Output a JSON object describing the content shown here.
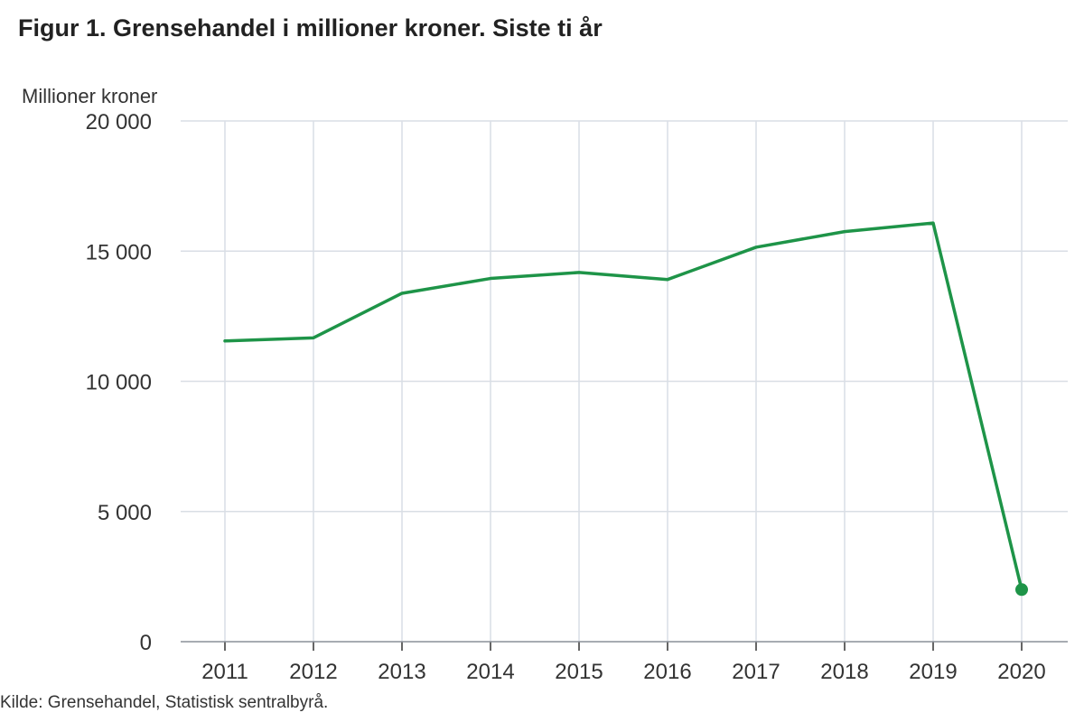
{
  "chart_data": {
    "type": "line",
    "title": "Figur 1. Grensehandel i millioner kroner. Siste ti år",
    "ylabel": "Millioner kroner",
    "xlabel": "",
    "source": "Kilde: Grensehandel, Statistisk sentralbyrå.",
    "categories": [
      "2011",
      "2012",
      "2013",
      "2014",
      "2015",
      "2016",
      "2017",
      "2018",
      "2019",
      "2020"
    ],
    "series": [
      {
        "values": [
          11550,
          11670,
          13380,
          13950,
          14180,
          13910,
          15150,
          15750,
          16080,
          2000
        ],
        "color": "#1e9448"
      }
    ],
    "ylim": [
      0,
      20000
    ],
    "yticks": [
      0,
      5000,
      10000,
      15000,
      20000
    ],
    "ytick_labels": [
      "0",
      "5 000",
      "10 000",
      "15 000",
      "20 000"
    ],
    "grid": true,
    "marker_on_last_point": true,
    "gridline_color": "#d9dee5"
  }
}
